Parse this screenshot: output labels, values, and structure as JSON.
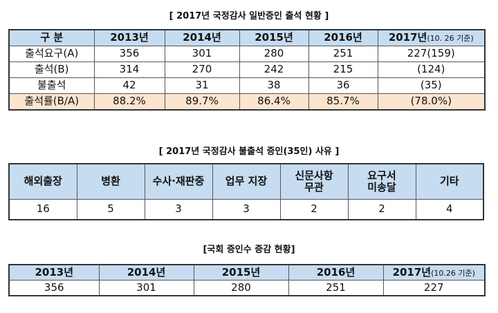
{
  "table1": {
    "title": "[ 2017년 국정감사 일반증인 출석 현황 ]",
    "header": [
      "구  분",
      "2013년",
      "2014년",
      "2015년",
      "2016년",
      "2017년"
    ],
    "header_note": "(10. 26 기준)",
    "rows": [
      [
        "출석요구(A)",
        "356",
        "301",
        "280",
        "251",
        "227(159)"
      ],
      [
        "출석(B)",
        "314",
        "270",
        "242",
        "215",
        "(124)"
      ],
      [
        "불출석",
        "42",
        "31",
        "38",
        "36",
        "(35)"
      ],
      [
        "출석률(B/A)",
        "88.2%",
        "89.7%",
        "86.4%",
        "85.7%",
        "(78.0%)"
      ]
    ]
  },
  "table2": {
    "title": "[ 2017년 국정감사 불출석 증인(35인) 사유 ]",
    "header": [
      "해외출장",
      "병환",
      "수사·재판중",
      "업무 지장",
      "신문사항\n무관",
      "요구서\n미송달",
      "기타"
    ],
    "rows": [
      [
        "16",
        "5",
        "3",
        "3",
        "2",
        "2",
        "4"
      ]
    ]
  },
  "table3": {
    "title": "[국회 증인수 증감 현황]",
    "header": [
      "2013년",
      "2014년",
      "2015년",
      "2016년",
      "2017년"
    ],
    "header_note": "(10.26 기준)",
    "rows": [
      [
        "356",
        "301",
        "280",
        "251",
        "227"
      ]
    ]
  }
}
